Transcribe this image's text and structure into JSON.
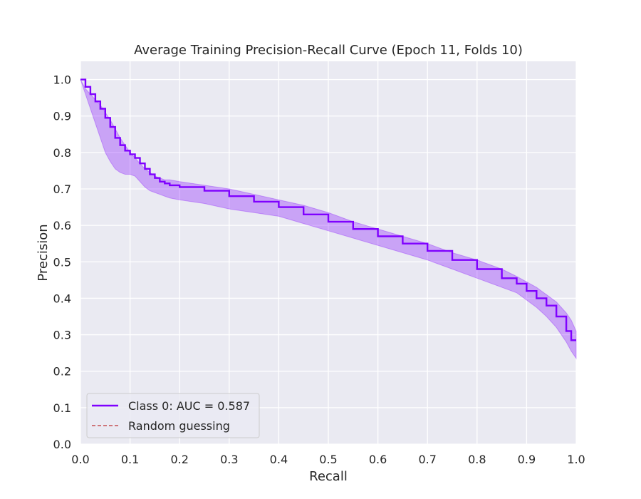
{
  "chart_data": {
    "type": "line",
    "title": "Average Training Precision-Recall Curve (Epoch 11, Folds 10)",
    "xlabel": "Recall",
    "ylabel": "Precision",
    "xlim": [
      0.0,
      1.0
    ],
    "ylim": [
      0.0,
      1.05
    ],
    "xticks": [
      "0.0",
      "0.1",
      "0.2",
      "0.3",
      "0.4",
      "0.5",
      "0.6",
      "0.7",
      "0.8",
      "0.9",
      "1.0"
    ],
    "yticks": [
      "0.0",
      "0.1",
      "0.2",
      "0.3",
      "0.4",
      "0.5",
      "0.6",
      "0.7",
      "0.8",
      "0.9",
      "1.0"
    ],
    "grid": true,
    "legend_position": "lower-left",
    "series": [
      {
        "name": "Class 0: AUC = 0.587",
        "color": "#7f00ff",
        "style": "step",
        "x": [
          0.0,
          0.01,
          0.02,
          0.03,
          0.04,
          0.05,
          0.06,
          0.07,
          0.08,
          0.09,
          0.1,
          0.11,
          0.12,
          0.13,
          0.14,
          0.15,
          0.16,
          0.17,
          0.18,
          0.2,
          0.25,
          0.3,
          0.35,
          0.4,
          0.45,
          0.5,
          0.55,
          0.6,
          0.65,
          0.7,
          0.75,
          0.8,
          0.85,
          0.88,
          0.9,
          0.92,
          0.94,
          0.96,
          0.98,
          0.99,
          1.0
        ],
        "y": [
          1.0,
          0.98,
          0.96,
          0.94,
          0.92,
          0.895,
          0.87,
          0.84,
          0.82,
          0.805,
          0.795,
          0.785,
          0.77,
          0.755,
          0.74,
          0.73,
          0.72,
          0.715,
          0.71,
          0.705,
          0.695,
          0.68,
          0.665,
          0.65,
          0.63,
          0.61,
          0.59,
          0.57,
          0.55,
          0.53,
          0.505,
          0.48,
          0.455,
          0.44,
          0.42,
          0.4,
          0.38,
          0.35,
          0.31,
          0.285,
          0.285
        ],
        "band_upper": [
          1.0,
          0.975,
          0.96,
          0.945,
          0.93,
          0.91,
          0.89,
          0.865,
          0.84,
          0.82,
          0.8,
          0.785,
          0.77,
          0.755,
          0.745,
          0.735,
          0.73,
          0.725,
          0.725,
          0.72,
          0.71,
          0.7,
          0.685,
          0.67,
          0.655,
          0.635,
          0.61,
          0.59,
          0.57,
          0.55,
          0.525,
          0.505,
          0.48,
          0.46,
          0.445,
          0.43,
          0.41,
          0.39,
          0.36,
          0.34,
          0.31
        ],
        "band_lower": [
          1.0,
          0.96,
          0.92,
          0.88,
          0.84,
          0.8,
          0.775,
          0.755,
          0.745,
          0.74,
          0.74,
          0.735,
          0.72,
          0.705,
          0.695,
          0.69,
          0.685,
          0.68,
          0.675,
          0.67,
          0.66,
          0.645,
          0.635,
          0.625,
          0.605,
          0.585,
          0.565,
          0.545,
          0.525,
          0.505,
          0.48,
          0.455,
          0.43,
          0.415,
          0.395,
          0.375,
          0.35,
          0.32,
          0.28,
          0.255,
          0.235
        ]
      }
    ],
    "legend": [
      {
        "label": "Class 0: AUC = 0.587",
        "color": "#7f00ff",
        "dashed": false
      },
      {
        "label": "Random guessing",
        "color": "#c44e52",
        "dashed": true
      }
    ]
  }
}
